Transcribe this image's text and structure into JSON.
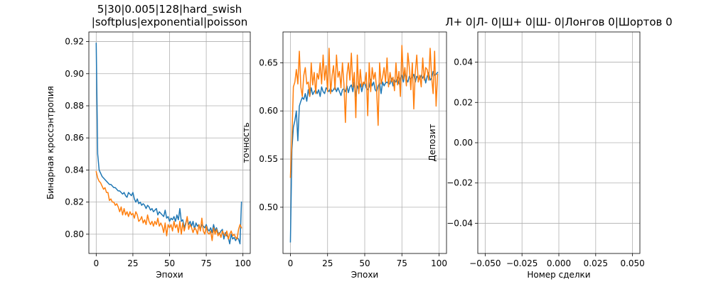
{
  "chart_data": [
    {
      "type": "line",
      "title": "5|30|0.005|128|hard_swish\n|softplus|exponential|poisson",
      "xlabel": "Эпохи",
      "ylabel": "Бинарная кроссэнтропия",
      "xlim": [
        -5,
        105
      ],
      "ylim": [
        0.788,
        0.926
      ],
      "xticks": [
        0,
        25,
        50,
        75,
        100
      ],
      "yticks": [
        0.8,
        0.82,
        0.84,
        0.86,
        0.88,
        0.9,
        0.92
      ],
      "ytick_labels": [
        "0.80",
        "0.82",
        "0.84",
        "0.86",
        "0.88",
        "0.90",
        "0.92"
      ],
      "grid": true,
      "series": [
        {
          "color": "#1f77b4",
          "x": [
            0,
            1,
            2,
            3,
            4,
            5,
            6,
            7,
            8,
            9,
            10,
            11,
            12,
            13,
            14,
            15,
            16,
            17,
            18,
            19,
            20,
            21,
            22,
            23,
            24,
            25,
            26,
            27,
            28,
            29,
            30,
            31,
            32,
            33,
            34,
            35,
            36,
            37,
            38,
            39,
            40,
            41,
            42,
            43,
            44,
            45,
            46,
            47,
            48,
            49,
            50,
            51,
            52,
            53,
            54,
            55,
            56,
            57,
            58,
            59,
            60,
            61,
            62,
            63,
            64,
            65,
            66,
            67,
            68,
            69,
            70,
            71,
            72,
            73,
            74,
            75,
            76,
            77,
            78,
            79,
            80,
            81,
            82,
            83,
            84,
            85,
            86,
            87,
            88,
            89,
            90,
            91,
            92,
            93,
            94,
            95,
            96,
            97,
            98,
            99
          ],
          "y": [
            0.919,
            0.85,
            0.84,
            0.838,
            0.836,
            0.835,
            0.834,
            0.833,
            0.832,
            0.831,
            0.831,
            0.83,
            0.829,
            0.829,
            0.828,
            0.827,
            0.827,
            0.826,
            0.825,
            0.826,
            0.824,
            0.823,
            0.826,
            0.825,
            0.824,
            0.826,
            0.822,
            0.82,
            0.822,
            0.819,
            0.82,
            0.818,
            0.819,
            0.818,
            0.816,
            0.818,
            0.817,
            0.815,
            0.816,
            0.814,
            0.815,
            0.816,
            0.812,
            0.814,
            0.813,
            0.812,
            0.811,
            0.815,
            0.81,
            0.811,
            0.808,
            0.81,
            0.809,
            0.811,
            0.808,
            0.812,
            0.809,
            0.816,
            0.808,
            0.809,
            0.804,
            0.807,
            0.81,
            0.806,
            0.808,
            0.805,
            0.808,
            0.803,
            0.807,
            0.805,
            0.806,
            0.803,
            0.806,
            0.805,
            0.804,
            0.806,
            0.803,
            0.802,
            0.804,
            0.801,
            0.806,
            0.802,
            0.804,
            0.801,
            0.8,
            0.802,
            0.803,
            0.797,
            0.801,
            0.799,
            0.798,
            0.794,
            0.8,
            0.797,
            0.798,
            0.796,
            0.798,
            0.797,
            0.794,
            0.82
          ]
        },
        {
          "color": "#ff7f0e",
          "x": [
            0,
            1,
            2,
            3,
            4,
            5,
            6,
            7,
            8,
            9,
            10,
            11,
            12,
            13,
            14,
            15,
            16,
            17,
            18,
            19,
            20,
            21,
            22,
            23,
            24,
            25,
            26,
            27,
            28,
            29,
            30,
            31,
            32,
            33,
            34,
            35,
            36,
            37,
            38,
            39,
            40,
            41,
            42,
            43,
            44,
            45,
            46,
            47,
            48,
            49,
            50,
            51,
            52,
            53,
            54,
            55,
            56,
            57,
            58,
            59,
            60,
            61,
            62,
            63,
            64,
            65,
            66,
            67,
            68,
            69,
            70,
            71,
            72,
            73,
            74,
            75,
            76,
            77,
            78,
            79,
            80,
            81,
            82,
            83,
            84,
            85,
            86,
            87,
            88,
            89,
            90,
            91,
            92,
            93,
            94,
            95,
            96,
            97,
            98,
            99
          ],
          "y": [
            0.839,
            0.835,
            0.833,
            0.832,
            0.83,
            0.828,
            0.829,
            0.826,
            0.826,
            0.821,
            0.822,
            0.82,
            0.82,
            0.818,
            0.819,
            0.817,
            0.814,
            0.817,
            0.812,
            0.816,
            0.812,
            0.814,
            0.811,
            0.814,
            0.812,
            0.813,
            0.81,
            0.814,
            0.812,
            0.808,
            0.809,
            0.811,
            0.807,
            0.809,
            0.806,
            0.812,
            0.808,
            0.806,
            0.808,
            0.805,
            0.808,
            0.806,
            0.81,
            0.805,
            0.807,
            0.805,
            0.801,
            0.807,
            0.799,
            0.806,
            0.804,
            0.806,
            0.802,
            0.808,
            0.804,
            0.806,
            0.801,
            0.808,
            0.8,
            0.807,
            0.802,
            0.806,
            0.811,
            0.803,
            0.806,
            0.804,
            0.801,
            0.804,
            0.803,
            0.8,
            0.806,
            0.802,
            0.81,
            0.802,
            0.8,
            0.805,
            0.801,
            0.8,
            0.802,
            0.796,
            0.804,
            0.8,
            0.803,
            0.799,
            0.801,
            0.798,
            0.802,
            0.8,
            0.799,
            0.802,
            0.797,
            0.8,
            0.802,
            0.799,
            0.8,
            0.798,
            0.797,
            0.803,
            0.806,
            0.804
          ]
        }
      ]
    },
    {
      "type": "line",
      "title": "",
      "xlabel": "Эпохи",
      "ylabel": "точность",
      "xlim": [
        -5,
        105
      ],
      "ylim": [
        0.452,
        0.682
      ],
      "xticks": [
        0,
        25,
        50,
        75,
        100
      ],
      "yticks": [
        0.5,
        0.55,
        0.6,
        0.65
      ],
      "ytick_labels": [
        "0.50",
        "0.55",
        "0.60",
        "0.65"
      ],
      "grid": true,
      "series": [
        {
          "color": "#1f77b4",
          "x": [
            0,
            1,
            2,
            3,
            4,
            5,
            6,
            7,
            8,
            9,
            10,
            11,
            12,
            13,
            14,
            15,
            16,
            17,
            18,
            19,
            20,
            21,
            22,
            23,
            24,
            25,
            26,
            27,
            28,
            29,
            30,
            31,
            32,
            33,
            34,
            35,
            36,
            37,
            38,
            39,
            40,
            41,
            42,
            43,
            44,
            45,
            46,
            47,
            48,
            49,
            50,
            51,
            52,
            53,
            54,
            55,
            56,
            57,
            58,
            59,
            60,
            61,
            62,
            63,
            64,
            65,
            66,
            67,
            68,
            69,
            70,
            71,
            72,
            73,
            74,
            75,
            76,
            77,
            78,
            79,
            80,
            81,
            82,
            83,
            84,
            85,
            86,
            87,
            88,
            89,
            90,
            91,
            92,
            93,
            94,
            95,
            96,
            97,
            98,
            99
          ],
          "y": [
            0.464,
            0.56,
            0.583,
            0.59,
            0.6,
            0.569,
            0.605,
            0.61,
            0.614,
            0.612,
            0.618,
            0.61,
            0.622,
            0.615,
            0.624,
            0.617,
            0.62,
            0.622,
            0.618,
            0.622,
            0.615,
            0.625,
            0.62,
            0.618,
            0.624,
            0.622,
            0.62,
            0.624,
            0.62,
            0.622,
            0.625,
            0.62,
            0.624,
            0.62,
            0.616,
            0.622,
            0.623,
            0.62,
            0.626,
            0.619,
            0.625,
            0.627,
            0.62,
            0.63,
            0.615,
            0.626,
            0.622,
            0.628,
            0.62,
            0.627,
            0.63,
            0.624,
            0.622,
            0.625,
            0.633,
            0.626,
            0.63,
            0.622,
            0.62,
            0.626,
            0.629,
            0.618,
            0.63,
            0.626,
            0.629,
            0.63,
            0.628,
            0.628,
            0.634,
            0.626,
            0.632,
            0.63,
            0.635,
            0.628,
            0.634,
            0.637,
            0.63,
            0.64,
            0.633,
            0.63,
            0.636,
            0.633,
            0.635,
            0.638,
            0.63,
            0.636,
            0.634,
            0.633,
            0.637,
            0.634,
            0.638,
            0.629,
            0.636,
            0.64,
            0.632,
            0.634,
            0.641,
            0.637,
            0.638,
            0.64
          ]
        },
        {
          "color": "#ff7f0e",
          "x": [
            0,
            1,
            2,
            3,
            4,
            5,
            6,
            7,
            8,
            9,
            10,
            11,
            12,
            13,
            14,
            15,
            16,
            17,
            18,
            19,
            20,
            21,
            22,
            23,
            24,
            25,
            26,
            27,
            28,
            29,
            30,
            31,
            32,
            33,
            34,
            35,
            36,
            37,
            38,
            39,
            40,
            41,
            42,
            43,
            44,
            45,
            46,
            47,
            48,
            49,
            50,
            51,
            52,
            53,
            54,
            55,
            56,
            57,
            58,
            59,
            60,
            61,
            62,
            63,
            64,
            65,
            66,
            67,
            68,
            69,
            70,
            71,
            72,
            73,
            74,
            75,
            76,
            77,
            78,
            79,
            80,
            81,
            82,
            83,
            84,
            85,
            86,
            87,
            88,
            89,
            90,
            91,
            92,
            93,
            94,
            95,
            96,
            97,
            98,
            99
          ],
          "y": [
            0.531,
            0.572,
            0.625,
            0.63,
            0.643,
            0.628,
            0.662,
            0.625,
            0.615,
            0.637,
            0.645,
            0.628,
            0.63,
            0.615,
            0.65,
            0.627,
            0.64,
            0.618,
            0.639,
            0.633,
            0.65,
            0.628,
            0.658,
            0.632,
            0.647,
            0.62,
            0.665,
            0.618,
            0.636,
            0.647,
            0.622,
            0.658,
            0.635,
            0.641,
            0.624,
            0.65,
            0.628,
            0.588,
            0.637,
            0.65,
            0.632,
            0.66,
            0.625,
            0.64,
            0.593,
            0.658,
            0.618,
            0.643,
            0.625,
            0.63,
            0.628,
            0.64,
            0.595,
            0.65,
            0.62,
            0.645,
            0.633,
            0.64,
            0.622,
            0.585,
            0.65,
            0.628,
            0.635,
            0.645,
            0.63,
            0.655,
            0.625,
            0.64,
            0.63,
            0.635,
            0.621,
            0.65,
            0.627,
            0.641,
            0.615,
            0.668,
            0.633,
            0.645,
            0.626,
            0.66,
            0.645,
            0.622,
            0.65,
            0.602,
            0.64,
            0.658,
            0.63,
            0.637,
            0.625,
            0.655,
            0.632,
            0.645,
            0.643,
            0.632,
            0.665,
            0.635,
            0.618,
            0.662,
            0.605,
            0.638
          ]
        }
      ]
    },
    {
      "type": "line",
      "title": "Л+ 0|Л- 0|Ш+ 0|Ш- 0|Лонгов 0|Шортов 0",
      "xlabel": "Номер сделки",
      "ylabel": "Депозит",
      "xlim": [
        -0.055,
        0.055
      ],
      "ylim": [
        -0.055,
        0.055
      ],
      "xticks": [
        -0.05,
        -0.025,
        0.0,
        0.025,
        0.05
      ],
      "xtick_labels": [
        "−0.050",
        "−0.025",
        "0.000",
        "0.025",
        "0.050"
      ],
      "yticks": [
        -0.04,
        -0.02,
        0.0,
        0.02,
        0.04
      ],
      "ytick_labels": [
        "−0.04",
        "−0.02",
        "0.00",
        "0.02",
        "0.04"
      ],
      "grid": true,
      "series": []
    }
  ]
}
